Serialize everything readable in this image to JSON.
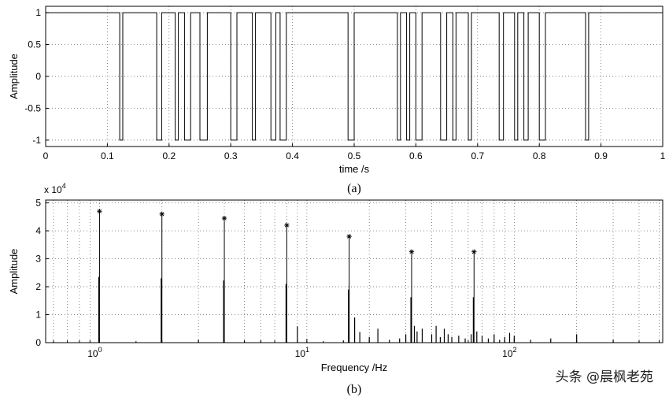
{
  "chart_data": [
    {
      "type": "line",
      "panel_label": "(a)",
      "xlabel": "time /s",
      "ylabel": "Amplitude",
      "xlim": [
        0,
        1
      ],
      "ylim": [
        -1.1,
        1.1
      ],
      "xticks": [
        "0",
        "0.1",
        "0.2",
        "0.3",
        "0.4",
        "0.5",
        "0.6",
        "0.7",
        "0.8",
        "0.9",
        "1"
      ],
      "yticks": [
        "1",
        "0.5",
        "0",
        "-0.5",
        "-1"
      ],
      "grid": true,
      "step_times": [
        0,
        0.12,
        0.125,
        0.18,
        0.188,
        0.21,
        0.215,
        0.225,
        0.235,
        0.25,
        0.262,
        0.3,
        0.31,
        0.335,
        0.34,
        0.365,
        0.373,
        0.38,
        0.39,
        0.49,
        0.5,
        0.57,
        0.575,
        0.585,
        0.59,
        0.6,
        0.61,
        0.64,
        0.65,
        0.66,
        0.665,
        0.685,
        0.69,
        0.735,
        0.742,
        0.76,
        0.765,
        0.775,
        0.782,
        0.8,
        0.81,
        0.875,
        0.88,
        1.0
      ],
      "step_values": [
        1,
        -1,
        1,
        -1,
        1,
        -1,
        1,
        -1,
        1,
        -1,
        1,
        -1,
        1,
        -1,
        1,
        -1,
        1,
        -1,
        1,
        -1,
        1,
        -1,
        1,
        -1,
        1,
        -1,
        1,
        -1,
        1,
        -1,
        1,
        -1,
        1,
        -1,
        1,
        -1,
        1,
        -1,
        1,
        -1,
        1,
        -1,
        1,
        -1
      ]
    },
    {
      "type": "stem",
      "panel_label": "(b)",
      "xlabel": "Frequency /Hz",
      "ylabel": "Amplitude",
      "xscale": "log",
      "xlim": [
        0.55,
        520
      ],
      "ylim": [
        0,
        5.1
      ],
      "y_multiplier": "x 10",
      "y_multiplier_exp": "4",
      "xtick_base": "10",
      "xtick_exps": [
        "0",
        "1",
        "2"
      ],
      "yticks": [
        "5",
        "4",
        "3",
        "2",
        "1",
        "0"
      ],
      "grid": true,
      "peaks": {
        "x": [
          1,
          2,
          4,
          8,
          16,
          32,
          64
        ],
        "y": [
          4.7,
          4.6,
          4.45,
          4.2,
          3.8,
          3.25,
          3.25
        ]
      },
      "minor_components": {
        "x": [
          0.6,
          1.5,
          3,
          5,
          6,
          9,
          10,
          12,
          15,
          17,
          18,
          20,
          22,
          25,
          28,
          30,
          33,
          34,
          36,
          40,
          42,
          44,
          46,
          48,
          50,
          54,
          58,
          62,
          66,
          70,
          75,
          80,
          85,
          90,
          95,
          100,
          120,
          150,
          200,
          300,
          400
        ],
        "y": [
          0.03,
          0.05,
          0.1,
          0.05,
          0.08,
          0.58,
          0.05,
          0.05,
          0.08,
          0.9,
          0.38,
          0.2,
          0.5,
          0.1,
          0.15,
          0.3,
          0.6,
          0.4,
          0.5,
          0.3,
          0.6,
          0.2,
          0.5,
          0.3,
          0.2,
          0.25,
          0.15,
          0.3,
          0.4,
          0.25,
          0.15,
          0.3,
          0.1,
          0.2,
          0.35,
          0.25,
          0.1,
          0.15,
          0.3,
          0.1,
          0.05
        ]
      }
    }
  ],
  "watermark": "头条 @晨枫老苑"
}
